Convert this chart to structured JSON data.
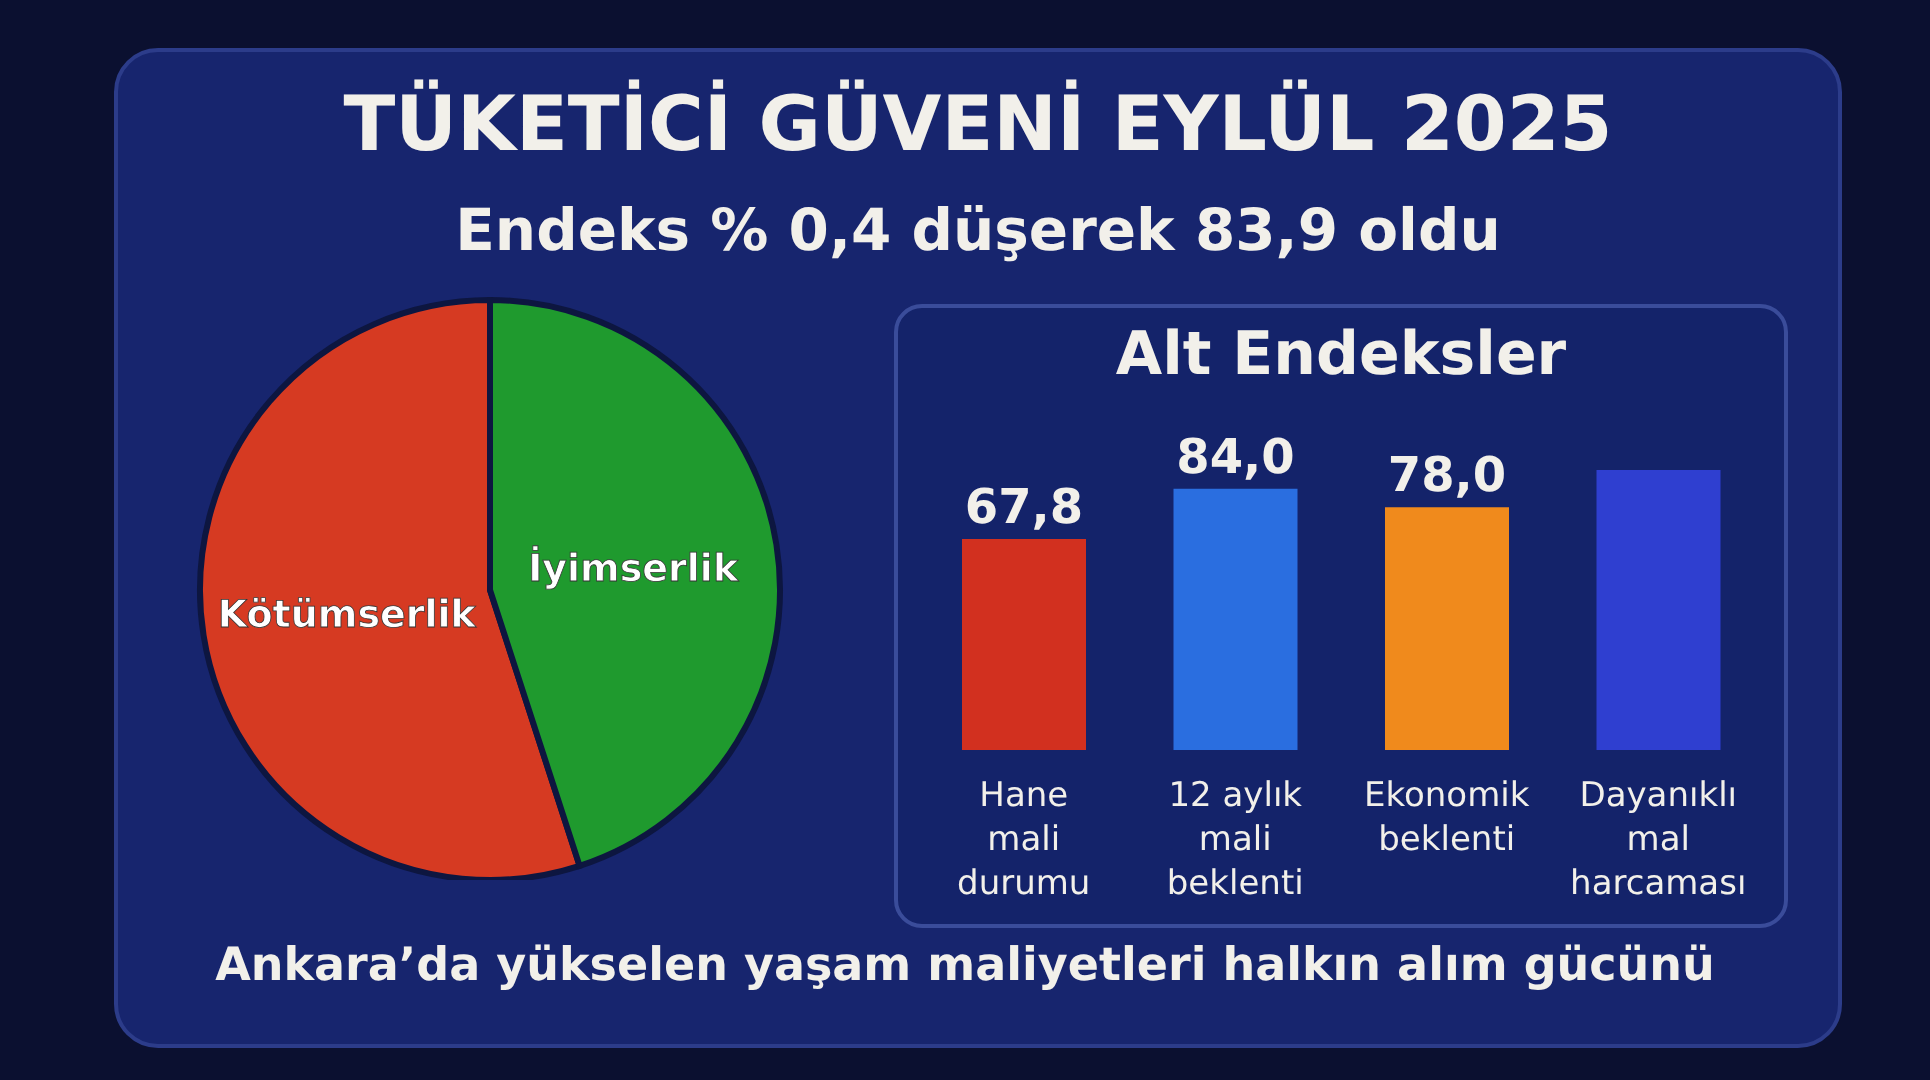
{
  "chart_data": [
    {
      "type": "pie",
      "title": "TÜKETİCİ GÜVENİ EYLÜL 2025",
      "subtitle": "Endeks % 0,4 düşerek 83,9 oldu",
      "categories": [
        "Kötümserlik",
        "İyimserlik"
      ],
      "values": [
        55,
        45
      ],
      "colors": [
        "#d63a22",
        "#1f9a2e"
      ],
      "annotations": [
        "Ankara’da yükselen yaşam maliyetleri halkın alım gücünü"
      ]
    },
    {
      "type": "bar",
      "title": "Alt Endeksler",
      "categories": [
        "Hane mali durumu",
        "12 aylık mali beklenti",
        "Ekonomik beklenti",
        "Dayanıklı mal harcaması"
      ],
      "values": [
        67.8,
        84.0,
        78.0,
        90
      ],
      "colors": [
        "#d2301f",
        "#2a6ee0",
        "#f08a1c",
        "#2f3fd0"
      ],
      "value_labels": [
        "67,8",
        "84,0",
        "78,0",
        null
      ],
      "grid": false
    }
  ]
}
